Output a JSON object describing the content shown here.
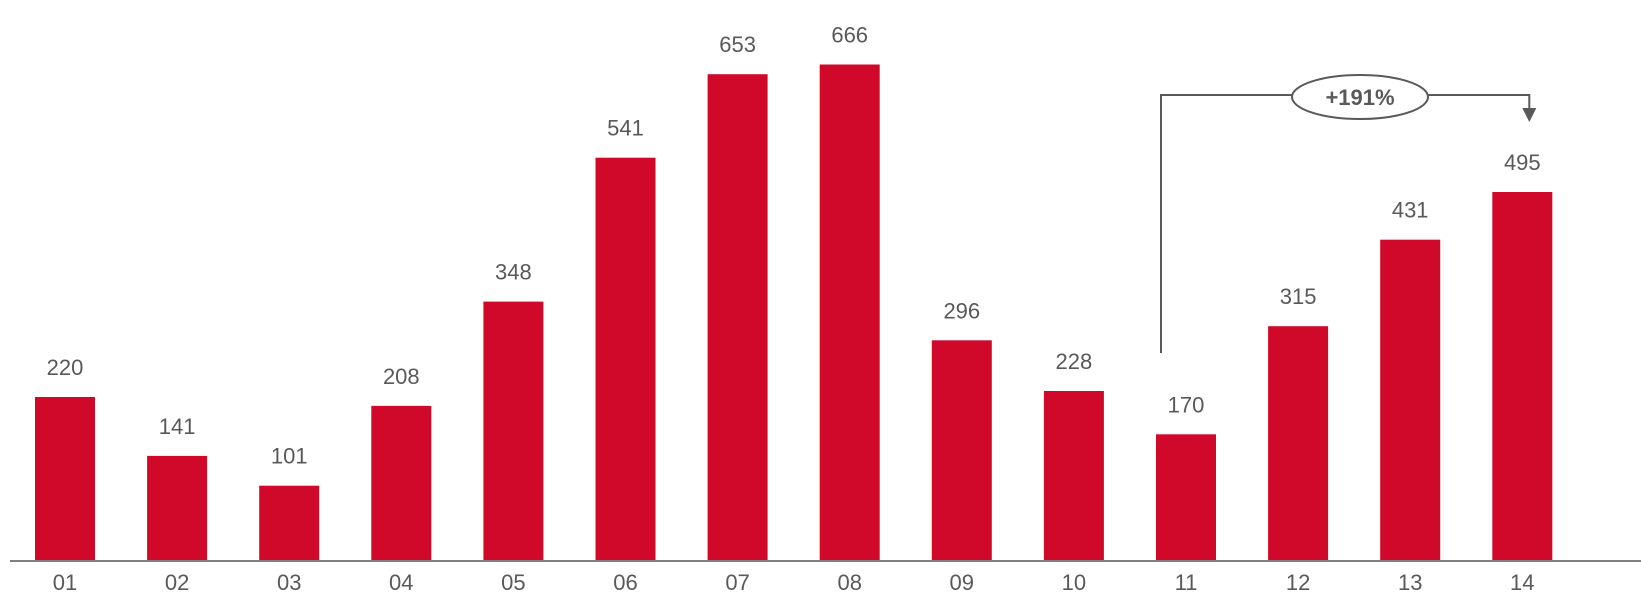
{
  "chart_data": {
    "type": "bar",
    "title": "",
    "xlabel": "",
    "ylabel": "",
    "categories": [
      "01",
      "02",
      "03",
      "04",
      "05",
      "06",
      "07",
      "08",
      "09",
      "10",
      "11",
      "12",
      "13",
      "14"
    ],
    "values": [
      220,
      141,
      101,
      208,
      348,
      541,
      653,
      666,
      296,
      228,
      170,
      315,
      431,
      495
    ],
    "data_labels": [
      "220",
      "141",
      "101",
      "208",
      "348",
      "541",
      "653",
      "666",
      "296",
      "228",
      "170",
      "315",
      "431",
      "495"
    ],
    "ylim": [
      0,
      700
    ],
    "grid": false,
    "legend": "none",
    "bar_color": "#d0092b",
    "annotation": {
      "label": "+191%",
      "from_category": "11",
      "to_category": "14",
      "color": "#595959"
    }
  }
}
